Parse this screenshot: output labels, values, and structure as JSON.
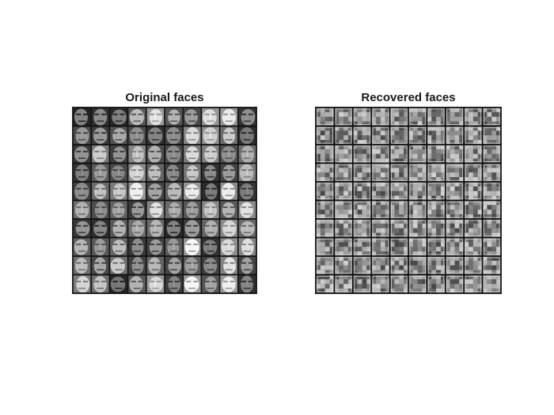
{
  "figure": {
    "panels": [
      {
        "title": "Original faces",
        "grid_rows": 10,
        "grid_cols": 10,
        "image_style": "grayscale-face-patches"
      },
      {
        "title": "Recovered faces",
        "grid_rows": 10,
        "grid_cols": 10,
        "image_style": "grayscale-noisy-recovered-patches"
      }
    ],
    "colors": {
      "background": "#ffffff",
      "grid_line": "#111111",
      "title_text": "#1a1a1a"
    }
  }
}
